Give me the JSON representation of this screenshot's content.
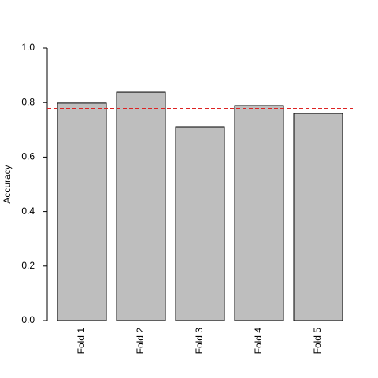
{
  "chart_data": {
    "type": "bar",
    "ylabel": "Accuracy",
    "categories": [
      "Fold 1",
      "Fold 2",
      "Fold 3",
      "Fold 4",
      "Fold 5"
    ],
    "values": [
      0.798,
      0.838,
      0.711,
      0.789,
      0.76
    ],
    "color": "#bebebe",
    "reference_line": {
      "value": 0.779,
      "color": "#dd2222"
    },
    "ylim": [
      0,
      1
    ],
    "yticks": [
      {
        "value": 0,
        "label": "0.0"
      },
      {
        "value": 0.2,
        "label": "0.2"
      },
      {
        "value": 0.4,
        "label": "0.4"
      },
      {
        "value": 0.6,
        "label": "0.6"
      },
      {
        "value": 0.8,
        "label": "0.8"
      },
      {
        "value": 1,
        "label": "1.0"
      }
    ]
  }
}
